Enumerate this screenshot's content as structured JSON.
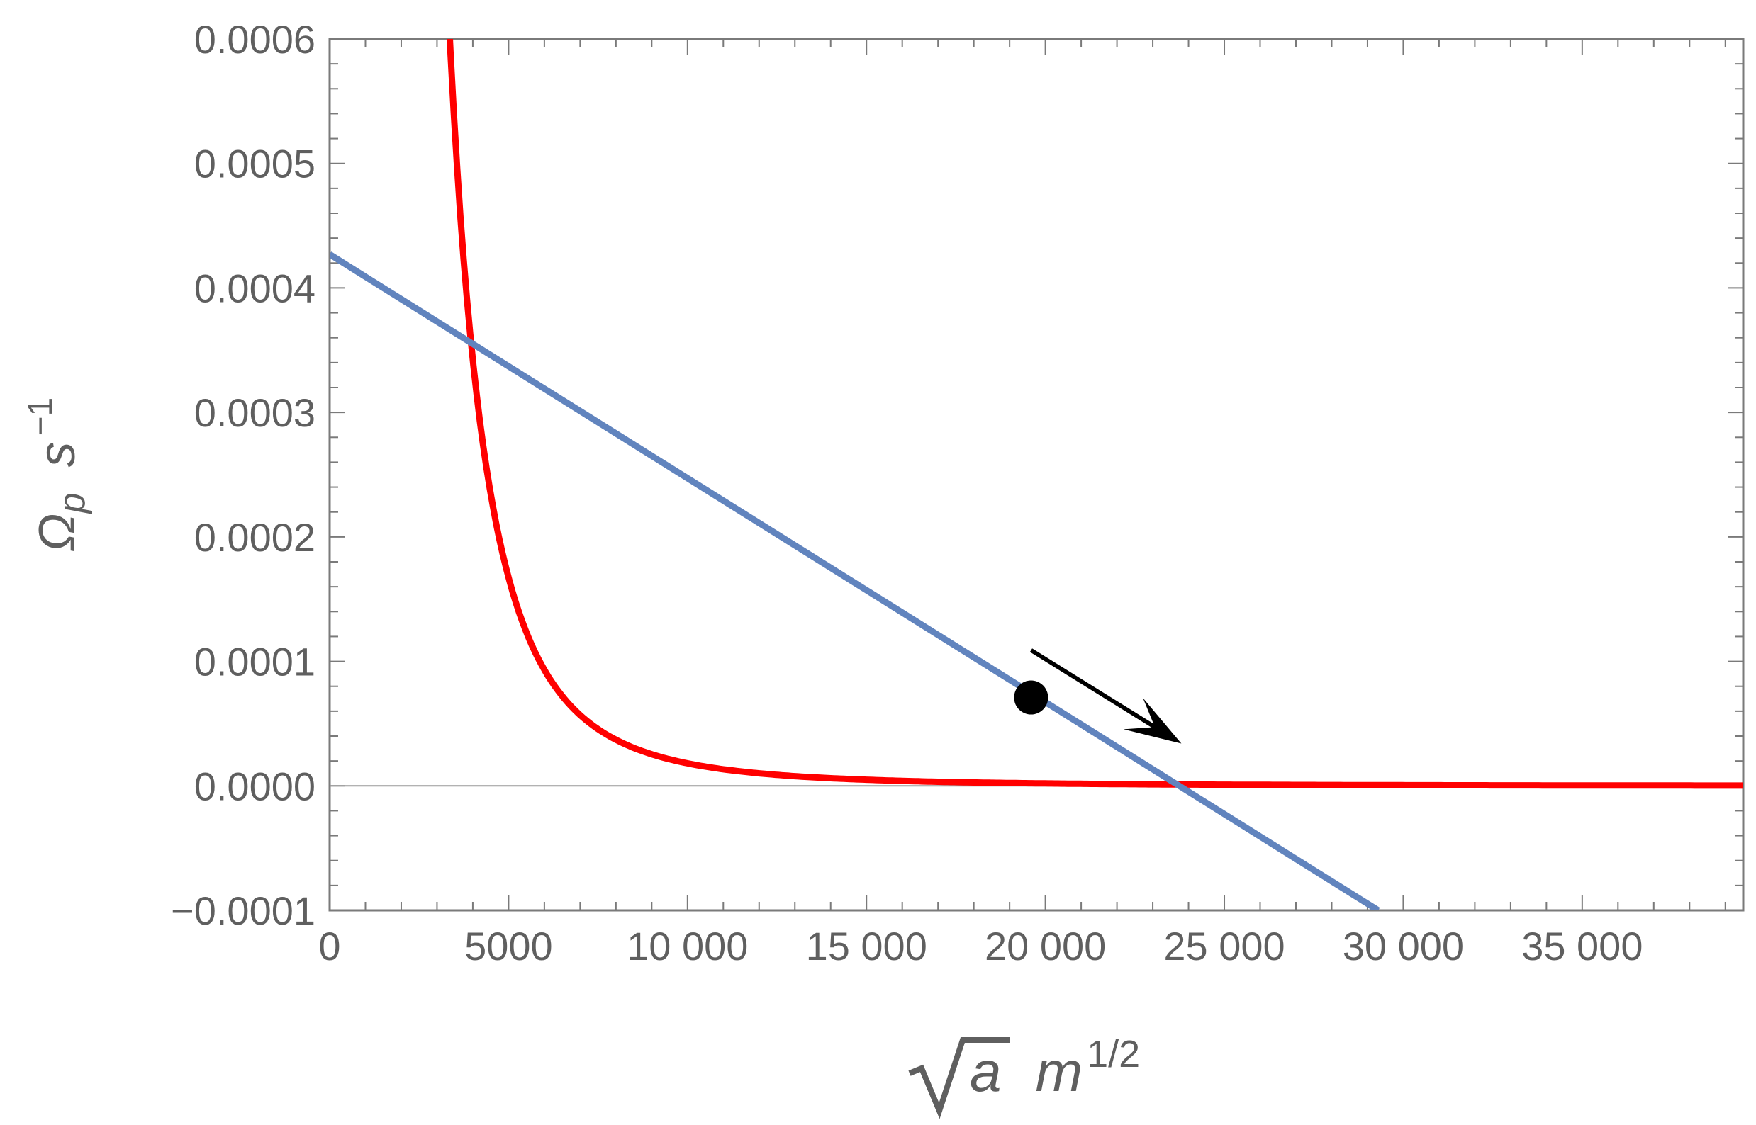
{
  "chart_data": {
    "type": "line",
    "title": "",
    "xlabel": {
      "base": "a",
      "unit": "m",
      "unit_exp": "1/2"
    },
    "ylabel": {
      "base": "Ω",
      "sub": "p",
      "unit": "s",
      "unit_exp": "−1"
    },
    "xlim": [
      0,
      39500
    ],
    "ylim": [
      -0.0001,
      0.0006
    ],
    "x_ticks": [
      {
        "value": 0,
        "label": "0"
      },
      {
        "value": 5000,
        "label": "5000"
      },
      {
        "value": 10000,
        "label": "10 000"
      },
      {
        "value": 15000,
        "label": "15 000"
      },
      {
        "value": 20000,
        "label": "20 000"
      },
      {
        "value": 25000,
        "label": "25 000"
      },
      {
        "value": 30000,
        "label": "30 000"
      },
      {
        "value": 35000,
        "label": "35 000"
      }
    ],
    "y_ticks": [
      {
        "value": -0.0001,
        "label": "−0.0001"
      },
      {
        "value": 0,
        "label": "0.0000"
      },
      {
        "value": 0.0001,
        "label": "0.0001"
      },
      {
        "value": 0.0002,
        "label": "0.0002"
      },
      {
        "value": 0.0003,
        "label": "0.0003"
      },
      {
        "value": 0.0004,
        "label": "0.0004"
      },
      {
        "value": 0.0005,
        "label": "0.0005"
      },
      {
        "value": 0.0006,
        "label": "0.0006"
      }
    ],
    "grid": false,
    "series": [
      {
        "color": "#ff0000",
        "points": [
          [
            3200,
            0.0006
          ],
          [
            3500,
            0.00046
          ],
          [
            4000,
            0.00031
          ],
          [
            4500,
            0.00022
          ],
          [
            5000,
            0.00016
          ],
          [
            5500,
            0.00012
          ],
          [
            6000,
            9.2e-05
          ],
          [
            6500,
            7.2e-05
          ],
          [
            7000,
            5.8e-05
          ],
          [
            8000,
            3.9e-05
          ],
          [
            9000,
            2.7e-05
          ],
          [
            10000,
            2e-05
          ],
          [
            12000,
            1.2e-05
          ],
          [
            14000,
            7.5e-06
          ],
          [
            16000,
            5e-06
          ],
          [
            20000,
            2.5e-06
          ],
          [
            25000,
            1.2e-06
          ],
          [
            30000,
            6e-07
          ],
          [
            35000,
            3e-07
          ],
          [
            39500,
            1e-07
          ]
        ]
      },
      {
        "color": "#6184be",
        "points": [
          [
            0,
            0.000427
          ],
          [
            29300,
            -0.0001
          ]
        ]
      }
    ],
    "zero_line": 0,
    "marker": {
      "x": 19600,
      "y": 7.1e-05,
      "color": "#000000"
    },
    "arrow": {
      "from": [
        19600,
        0.000109
      ],
      "to": [
        23800,
        3.4e-05
      ],
      "color": "#000000"
    }
  }
}
